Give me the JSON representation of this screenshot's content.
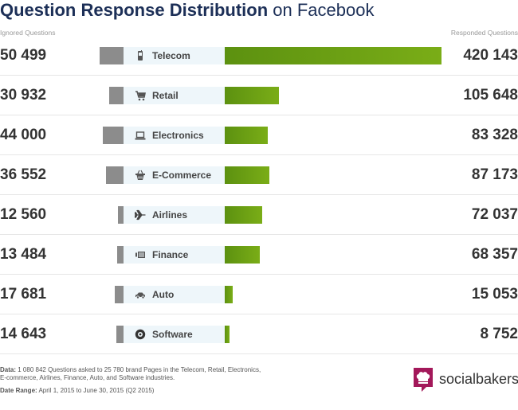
{
  "title": {
    "bold": "Question Response Distribution",
    "light": "on Facebook"
  },
  "headers": {
    "left": "Ignored Questions",
    "right": "Responded Questions"
  },
  "chart_data": {
    "type": "bar",
    "title": "Question Response Distribution on Facebook",
    "categories": [
      "Telecom",
      "Retail",
      "Electronics",
      "E-Commerce",
      "Airlines",
      "Finance",
      "Auto",
      "Software"
    ],
    "series": [
      {
        "name": "Ignored Questions",
        "values": [
          50499,
          30932,
          44000,
          36552,
          12560,
          13484,
          17681,
          14643
        ],
        "labels": [
          "50 499",
          "30 932",
          "44 000",
          "36 552",
          "12 560",
          "13 484",
          "17 681",
          "14 643"
        ],
        "color": "#8c8c8c"
      },
      {
        "name": "Responded Questions",
        "values": [
          420143,
          105648,
          83328,
          87173,
          72037,
          68357,
          15053,
          8752
        ],
        "labels": [
          "420 143",
          "105 648",
          "83 328",
          "87 173",
          "72 037",
          "68 357",
          "15 053",
          "8 752"
        ],
        "color": "#6fa315"
      }
    ],
    "icons": [
      "phone-icon",
      "cart-icon",
      "laptop-icon",
      "basket-icon",
      "airplane-icon",
      "money-icon",
      "car-icon",
      "disc-icon"
    ]
  },
  "footer": {
    "data_label": "Data:",
    "data_text": "1 080 842 Questions asked to 25 780 brand Pages in the Telecom, Retail, Electronics,",
    "data_text2": "E-commerce, Airlines, Finance, Auto, and Software industries.",
    "range_label": "Date Range:",
    "range_text": "April 1, 2015 to June 30, 2015 (Q2 2015)"
  },
  "brand": {
    "name": "socialbakers",
    "color": "#a3185a"
  }
}
